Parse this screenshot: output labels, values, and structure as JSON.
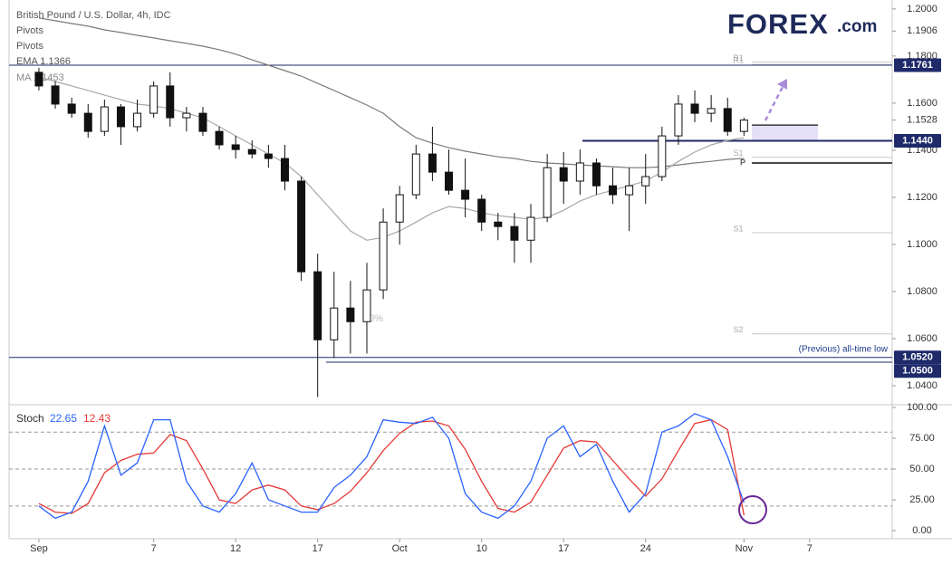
{
  "chart_data": [
    {
      "type": "candlestick",
      "title": "British Pound / U.S. Dollar, 4h, IDC",
      "indicators": [
        "Pivots",
        "Pivots"
      ],
      "x": [
        0,
        1,
        2,
        3,
        4,
        5,
        6,
        7,
        8,
        9,
        10,
        11,
        12,
        13,
        14,
        15,
        16,
        17,
        18,
        19,
        20,
        21,
        22,
        23,
        24,
        25,
        26,
        27,
        28,
        29,
        30,
        31,
        32,
        33,
        34,
        35,
        36,
        37,
        38,
        39,
        40,
        41,
        42,
        43
      ],
      "open": [
        1.1731,
        1.1673,
        1.1596,
        1.1557,
        1.148,
        1.1584,
        1.15,
        1.1557,
        1.1673,
        1.1538,
        1.1557,
        1.148,
        1.1423,
        1.1403,
        1.1384,
        1.1365,
        1.1269,
        1.0884,
        1.0595,
        1.073,
        1.0672,
        1.0807,
        1.1095,
        1.1211,
        1.1384,
        1.1307,
        1.123,
        1.1192,
        1.1095,
        1.1076,
        1.1018,
        1.1115,
        1.1326,
        1.1269,
        1.1346,
        1.1249,
        1.1211,
        1.1249,
        1.1288,
        1.1461,
        1.1596,
        1.1557,
        1.1577,
        1.148
      ],
      "high": [
        1.175,
        1.1692,
        1.1623,
        1.1596,
        1.1615,
        1.1596,
        1.1615,
        1.1692,
        1.1731,
        1.1584,
        1.1584,
        1.15,
        1.1461,
        1.1442,
        1.1423,
        1.1423,
        1.1288,
        1.0961,
        1.0884,
        1.0845,
        1.0922,
        1.1153,
        1.1249,
        1.1423,
        1.15,
        1.1403,
        1.1365,
        1.1211,
        1.1134,
        1.1134,
        1.1172,
        1.1384,
        1.1392,
        1.1403,
        1.1365,
        1.1326,
        1.1326,
        1.1384,
        1.15,
        1.1634,
        1.1654,
        1.1634,
        1.1623,
        1.1538
      ],
      "low": [
        1.1654,
        1.1577,
        1.1538,
        1.1453,
        1.1461,
        1.1423,
        1.148,
        1.1538,
        1.15,
        1.148,
        1.1461,
        1.1403,
        1.1365,
        1.1365,
        1.1326,
        1.123,
        1.0845,
        1.0352,
        1.0518,
        1.0537,
        1.0537,
        1.0768,
        1.0999,
        1.1192,
        1.1269,
        1.1211,
        1.1115,
        1.1057,
        1.1018,
        1.0922,
        1.0922,
        1.1095,
        1.1172,
        1.1211,
        1.1211,
        1.1172,
        1.1057,
        1.1172,
        1.1269,
        1.1423,
        1.1519,
        1.1519,
        1.1461,
        1.1461
      ],
      "close": [
        1.1673,
        1.1596,
        1.1557,
        1.148,
        1.1584,
        1.15,
        1.1557,
        1.1673,
        1.1538,
        1.1557,
        1.148,
        1.1423,
        1.1403,
        1.1384,
        1.1365,
        1.1269,
        1.0884,
        1.0595,
        1.073,
        1.0672,
        1.0807,
        1.1095,
        1.1211,
        1.1384,
        1.1307,
        1.123,
        1.1192,
        1.1095,
        1.1076,
        1.1018,
        1.1115,
        1.1326,
        1.1269,
        1.1346,
        1.1249,
        1.1211,
        1.1249,
        1.1288,
        1.1461,
        1.1596,
        1.1557,
        1.1577,
        1.148,
        1.1528
      ],
      "overlays": [
        {
          "name": "EMA  1.1366",
          "color": "#7a7a7a",
          "values": [
            1.1962,
            1.195,
            1.1938,
            1.1927,
            1.1911,
            1.19,
            1.1888,
            1.1877,
            1.1865,
            1.1854,
            1.1842,
            1.1827,
            1.1808,
            1.1784,
            1.1761,
            1.1738,
            1.1715,
            1.1684,
            1.1654,
            1.1623,
            1.1592,
            1.1557,
            1.15,
            1.1453,
            1.143,
            1.1411,
            1.1396,
            1.1384,
            1.1372,
            1.1365,
            1.1353,
            1.1346,
            1.1342,
            1.1338,
            1.1334,
            1.133,
            1.1326,
            1.1326,
            1.133,
            1.1338,
            1.1346,
            1.1353,
            1.1361,
            1.1366
          ]
        },
        {
          "name": "MA  1.1453",
          "color": "#a8a8a8",
          "values": [
            1.1711,
            1.1692,
            1.1673,
            1.1654,
            1.1634,
            1.1615,
            1.1596,
            1.1588,
            1.1577,
            1.1557,
            1.1538,
            1.15,
            1.1461,
            1.1423,
            1.1384,
            1.1346,
            1.1288,
            1.1211,
            1.1134,
            1.1057,
            1.1018,
            1.103,
            1.1057,
            1.1095,
            1.1134,
            1.1161,
            1.1153,
            1.1134,
            1.1122,
            1.1115,
            1.1107,
            1.1115,
            1.1145,
            1.1184,
            1.1211,
            1.123,
            1.1249,
            1.1269,
            1.1307,
            1.1353,
            1.1392,
            1.1423,
            1.1442,
            1.1453
          ]
        }
      ],
      "hlines": [
        {
          "value": 1.1761,
          "label": "1.1761"
        },
        {
          "value": 1.144,
          "label": "1.1440"
        },
        {
          "value": 1.052,
          "label": "1.0520"
        },
        {
          "value": 1.05,
          "label": "1.0500"
        }
      ],
      "pivots": [
        {
          "label": "R1",
          "value": 1.1765
        },
        {
          "label": "R1",
          "value": 1.1775
        },
        {
          "label": "S1",
          "value": 1.137
        },
        {
          "label": "P",
          "value": 1.1346
        },
        {
          "label": "S1",
          "value": 1.105
        },
        {
          "label": "S2",
          "value": 1.062
        }
      ],
      "zone": {
        "low": 1.144,
        "high": 1.1507
      },
      "annotations": [
        "(Previous) all-time low",
        "0%"
      ],
      "xlim": [
        -1.82,
        52.04
      ],
      "xticks": [
        {
          "value": 0,
          "label": "Sep"
        },
        7,
        12,
        17,
        {
          "value": 22,
          "label": "Oct"
        },
        {
          "value": 27,
          "label": "10"
        },
        {
          "value": 32,
          "label": "17"
        },
        {
          "value": 37,
          "label": "24"
        },
        {
          "value": 43,
          "label": "Nov"
        },
        {
          "value": 47,
          "label": "7"
        }
      ],
      "ylim": [
        1.0327,
        1.2038
      ],
      "yticks": [
        {
          "value": 1.2,
          "label": "1.2000"
        },
        1.1906,
        {
          "value": 1.18,
          "label": "1.1800"
        },
        {
          "value": 1.16,
          "label": "1.1600"
        },
        1.1528,
        {
          "value": 1.14,
          "label": "1.1400"
        },
        {
          "value": 1.12,
          "label": "1.1200"
        },
        {
          "value": 1.1,
          "label": "1.1000"
        },
        {
          "value": 1.08,
          "label": "1.0800"
        },
        {
          "value": 1.06,
          "label": "1.0600"
        },
        {
          "value": 1.04,
          "label": "1.0400"
        }
      ]
    },
    {
      "type": "line",
      "title": "Stoch",
      "series": [
        {
          "name": "22.65",
          "color": "#2962ff",
          "values": [
            20,
            10,
            15,
            40,
            85,
            45,
            55,
            90,
            90,
            40,
            20,
            15,
            30,
            55,
            25,
            20,
            15,
            15,
            35,
            45,
            60,
            90,
            88,
            87,
            92,
            75,
            30,
            15,
            10,
            20,
            40,
            75,
            85,
            60,
            70,
            40,
            15,
            30,
            80,
            85,
            95,
            90,
            60,
            22.65
          ]
        },
        {
          "name": "12.43",
          "color": "#e53935",
          "values": [
            22,
            15,
            14,
            22,
            47,
            57,
            62,
            63,
            78,
            73,
            50,
            25,
            22,
            33,
            37,
            33,
            20,
            17,
            22,
            32,
            47,
            65,
            79,
            88,
            89,
            85,
            66,
            40,
            18,
            15,
            23,
            45,
            67,
            73,
            72,
            57,
            42,
            28,
            42,
            65,
            87,
            90,
            82,
            12.43
          ]
        }
      ],
      "bands": [
        80,
        50,
        20
      ],
      "ylim": [
        -6.6,
        100
      ],
      "yticks": [
        {
          "value": 100,
          "label": "100.00"
        },
        {
          "value": 75,
          "label": "75.00"
        },
        {
          "value": 50,
          "label": "50.00"
        },
        {
          "value": 25,
          "label": "25.00"
        },
        {
          "value": 0,
          "label": "0.00"
        }
      ]
    }
  ],
  "logo": {
    "name": "FOREX",
    "suffix": ".com"
  }
}
